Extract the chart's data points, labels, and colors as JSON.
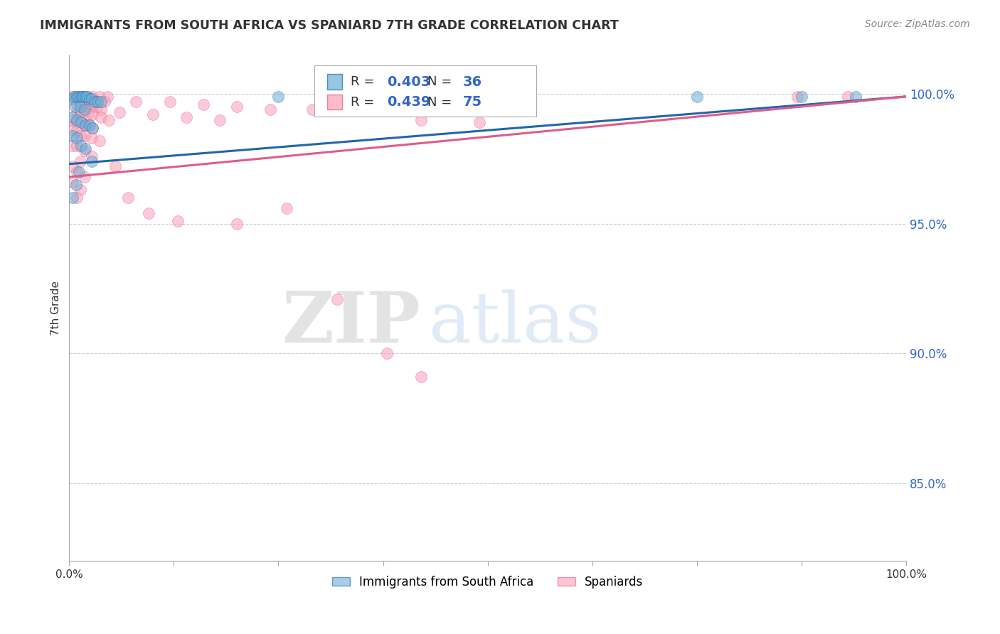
{
  "title": "IMMIGRANTS FROM SOUTH AFRICA VS SPANIARD 7TH GRADE CORRELATION CHART",
  "source": "Source: ZipAtlas.com",
  "ylabel": "7th Grade",
  "ytick_labels": [
    "85.0%",
    "90.0%",
    "95.0%",
    "100.0%"
  ],
  "ytick_values": [
    0.85,
    0.9,
    0.95,
    1.0
  ],
  "xlim": [
    0.0,
    1.0
  ],
  "ylim": [
    0.82,
    1.015
  ],
  "blue_R": 0.403,
  "blue_N": 36,
  "pink_R": 0.439,
  "pink_N": 75,
  "legend_label_blue": "Immigrants from South Africa",
  "legend_label_pink": "Spaniards",
  "blue_color": "#6baed6",
  "pink_color": "#fa9fb5",
  "blue_line_color": "#2166ac",
  "pink_line_color": "#e05c8a",
  "blue_points": [
    [
      0.003,
      0.998
    ],
    [
      0.006,
      0.999
    ],
    [
      0.009,
      0.999
    ],
    [
      0.011,
      0.999
    ],
    [
      0.013,
      0.999
    ],
    [
      0.015,
      0.999
    ],
    [
      0.017,
      0.999
    ],
    [
      0.019,
      0.999
    ],
    [
      0.021,
      0.999
    ],
    [
      0.024,
      0.998
    ],
    [
      0.027,
      0.998
    ],
    [
      0.03,
      0.997
    ],
    [
      0.034,
      0.997
    ],
    [
      0.038,
      0.997
    ],
    [
      0.007,
      0.995
    ],
    [
      0.013,
      0.995
    ],
    [
      0.018,
      0.994
    ],
    [
      0.004,
      0.991
    ],
    [
      0.009,
      0.99
    ],
    [
      0.014,
      0.989
    ],
    [
      0.019,
      0.988
    ],
    [
      0.024,
      0.988
    ],
    [
      0.028,
      0.987
    ],
    [
      0.004,
      0.984
    ],
    [
      0.009,
      0.983
    ],
    [
      0.014,
      0.98
    ],
    [
      0.019,
      0.979
    ],
    [
      0.027,
      0.974
    ],
    [
      0.012,
      0.97
    ],
    [
      0.008,
      0.965
    ],
    [
      0.004,
      0.96
    ],
    [
      0.25,
      0.999
    ],
    [
      0.5,
      0.999
    ],
    [
      0.75,
      0.999
    ],
    [
      0.875,
      0.999
    ],
    [
      0.94,
      0.999
    ]
  ],
  "pink_points": [
    [
      0.004,
      0.999
    ],
    [
      0.007,
      0.999
    ],
    [
      0.011,
      0.999
    ],
    [
      0.016,
      0.999
    ],
    [
      0.02,
      0.999
    ],
    [
      0.023,
      0.999
    ],
    [
      0.028,
      0.999
    ],
    [
      0.036,
      0.999
    ],
    [
      0.046,
      0.999
    ],
    [
      0.013,
      0.998
    ],
    [
      0.019,
      0.998
    ],
    [
      0.033,
      0.997
    ],
    [
      0.042,
      0.997
    ],
    [
      0.009,
      0.996
    ],
    [
      0.014,
      0.996
    ],
    [
      0.019,
      0.996
    ],
    [
      0.023,
      0.995
    ],
    [
      0.028,
      0.995
    ],
    [
      0.033,
      0.995
    ],
    [
      0.038,
      0.994
    ],
    [
      0.009,
      0.993
    ],
    [
      0.013,
      0.993
    ],
    [
      0.018,
      0.993
    ],
    [
      0.023,
      0.992
    ],
    [
      0.028,
      0.992
    ],
    [
      0.038,
      0.991
    ],
    [
      0.047,
      0.99
    ],
    [
      0.004,
      0.99
    ],
    [
      0.009,
      0.989
    ],
    [
      0.014,
      0.989
    ],
    [
      0.018,
      0.988
    ],
    [
      0.023,
      0.988
    ],
    [
      0.028,
      0.987
    ],
    [
      0.004,
      0.986
    ],
    [
      0.009,
      0.986
    ],
    [
      0.013,
      0.984
    ],
    [
      0.018,
      0.984
    ],
    [
      0.027,
      0.983
    ],
    [
      0.036,
      0.982
    ],
    [
      0.004,
      0.98
    ],
    [
      0.009,
      0.98
    ],
    [
      0.018,
      0.978
    ],
    [
      0.027,
      0.976
    ],
    [
      0.013,
      0.974
    ],
    [
      0.004,
      0.972
    ],
    [
      0.009,
      0.97
    ],
    [
      0.018,
      0.968
    ],
    [
      0.004,
      0.966
    ],
    [
      0.013,
      0.963
    ],
    [
      0.009,
      0.96
    ],
    [
      0.08,
      0.997
    ],
    [
      0.12,
      0.997
    ],
    [
      0.16,
      0.996
    ],
    [
      0.2,
      0.995
    ],
    [
      0.24,
      0.994
    ],
    [
      0.29,
      0.994
    ],
    [
      0.06,
      0.993
    ],
    [
      0.1,
      0.992
    ],
    [
      0.14,
      0.991
    ],
    [
      0.18,
      0.99
    ],
    [
      0.34,
      0.997
    ],
    [
      0.37,
      0.996
    ],
    [
      0.42,
      0.99
    ],
    [
      0.49,
      0.989
    ],
    [
      0.055,
      0.972
    ],
    [
      0.07,
      0.96
    ],
    [
      0.095,
      0.954
    ],
    [
      0.13,
      0.951
    ],
    [
      0.2,
      0.95
    ],
    [
      0.26,
      0.956
    ],
    [
      0.32,
      0.921
    ],
    [
      0.38,
      0.9
    ],
    [
      0.42,
      0.891
    ],
    [
      0.87,
      0.999
    ],
    [
      0.93,
      0.999
    ]
  ],
  "blue_trendline": [
    [
      0.0,
      0.973
    ],
    [
      1.0,
      0.999
    ]
  ],
  "pink_trendline": [
    [
      0.0,
      0.968
    ],
    [
      1.0,
      0.999
    ]
  ],
  "watermark_zip": "ZIP",
  "watermark_atlas": "atlas",
  "background_color": "#ffffff",
  "grid_color": "#cccccc"
}
